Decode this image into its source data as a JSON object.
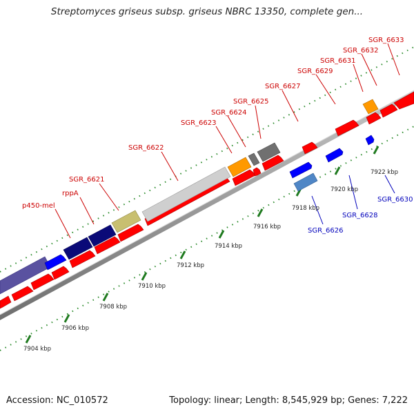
{
  "title": "Streptomyces griseus subsp. griseus NBRC 13350, complete gen...",
  "footer": {
    "accession": "Accession: NC_010572",
    "summary": "Topology: linear; Length: 8,545,929 bp; Genes: 7,222"
  },
  "colors": {
    "forward_label": "#cc0000",
    "reverse_label": "#0000bb",
    "forward_gene": "#ff0000",
    "reverse_gene": "#0000ff",
    "backbone": "#888888"
  },
  "forward_labels": [
    "p450-mel",
    "rppA",
    "SGR_6621",
    "SGR_6622",
    "SGR_6623",
    "SGR_6624",
    "SGR_6625",
    "SGR_6627",
    "SGR_6629",
    "SGR_6631",
    "SGR_6632",
    "SGR_6633"
  ],
  "reverse_labels": [
    "SGR_6626",
    "SGR_6628",
    "SGR_6630"
  ],
  "scale_labels": [
    "7904 kbp",
    "7906 kbp",
    "7908 kbp",
    "7910 kbp",
    "7912 kbp",
    "7914 kbp",
    "7916 kbp",
    "7918 kbp",
    "7920 kbp",
    "7922 kbp"
  ]
}
